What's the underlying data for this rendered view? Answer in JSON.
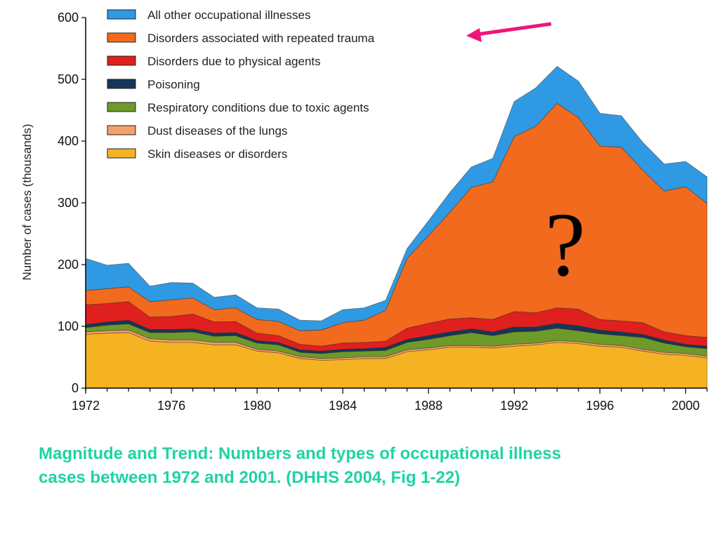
{
  "chart_data": {
    "type": "area",
    "stacked": true,
    "ylabel": "Number of cases (thousands)",
    "xlabel": "",
    "xlim": [
      1972,
      2001
    ],
    "ylim": [
      0,
      600
    ],
    "x_ticks": [
      1972,
      1976,
      1980,
      1984,
      1988,
      1992,
      1996,
      2000
    ],
    "y_ticks": [
      0,
      100,
      200,
      300,
      400,
      500,
      600
    ],
    "grid": false,
    "legend": "top-left",
    "x": [
      1972,
      1973,
      1974,
      1975,
      1976,
      1977,
      1978,
      1979,
      1980,
      1981,
      1982,
      1983,
      1984,
      1985,
      1986,
      1987,
      1988,
      1989,
      1990,
      1991,
      1992,
      1993,
      1994,
      1995,
      1996,
      1997,
      1998,
      1999,
      2000,
      2001
    ],
    "series": [
      {
        "name": "Skin diseases or disorders",
        "color": "#f5b324",
        "values": [
          87,
          89,
          90,
          76,
          74,
          74,
          70,
          70,
          60,
          57,
          48,
          45,
          46,
          48,
          48,
          59,
          62,
          66,
          66,
          65,
          68,
          70,
          74,
          72,
          68,
          66,
          60,
          55,
          53,
          49
        ]
      },
      {
        "name": "Dust diseases of the lungs",
        "color": "#f2a06c",
        "values": [
          4,
          4,
          4,
          4,
          4,
          4,
          4,
          4,
          3,
          3,
          3,
          3,
          3,
          3,
          3,
          3,
          3,
          3,
          3,
          3,
          3,
          3,
          3,
          3,
          3,
          3,
          3,
          3,
          3,
          3
        ]
      },
      {
        "name": "Respiratory conditions due to toxic agents",
        "color": "#6e9a2a",
        "values": [
          7,
          9,
          10,
          10,
          12,
          13,
          10,
          11,
          10,
          10,
          7,
          8,
          10,
          9,
          10,
          12,
          14,
          16,
          21,
          17,
          20,
          19,
          20,
          18,
          17,
          16,
          19,
          15,
          11,
          12
        ]
      },
      {
        "name": "Poisoning",
        "color": "#15365a",
        "values": [
          5,
          5,
          6,
          5,
          5,
          5,
          5,
          5,
          4,
          4,
          4,
          4,
          4,
          4,
          5,
          5,
          6,
          6,
          6,
          6,
          8,
          7,
          8,
          8,
          6,
          6,
          5,
          5,
          4,
          4
        ]
      },
      {
        "name": "Disorders due to physical agents",
        "color": "#e01f1f",
        "values": [
          32,
          30,
          30,
          20,
          21,
          24,
          18,
          18,
          12,
          11,
          9,
          8,
          10,
          10,
          10,
          18,
          20,
          21,
          18,
          20,
          25,
          23,
          25,
          27,
          17,
          18,
          19,
          13,
          14,
          14
        ]
      },
      {
        "name": "Disorders associated with repeated trauma",
        "color": "#f26a1e",
        "values": [
          23,
          24,
          24,
          25,
          27,
          26,
          20,
          22,
          22,
          23,
          22,
          26,
          33,
          36,
          50,
          113,
          142,
          173,
          211,
          223,
          283,
          302,
          331,
          310,
          281,
          281,
          247,
          228,
          241,
          217
        ]
      },
      {
        "name": "All other occupational illnesses",
        "color": "#2f9ae3",
        "values": [
          52,
          38,
          38,
          25,
          28,
          24,
          20,
          21,
          19,
          20,
          17,
          15,
          21,
          20,
          16,
          16,
          24,
          32,
          33,
          38,
          57,
          62,
          60,
          59,
          53,
          51,
          45,
          44,
          41,
          43
        ]
      }
    ]
  },
  "annotation": {
    "question_mark": "?",
    "arrow_color": "#f0157a"
  },
  "caption": {
    "line1": "Magnitude and Trend:  Numbers and types of occupational illness",
    "line2": "cases between 1972 and 2001.  (DHHS 2004, Fig 1-22)",
    "color": "#1fd3a3"
  }
}
